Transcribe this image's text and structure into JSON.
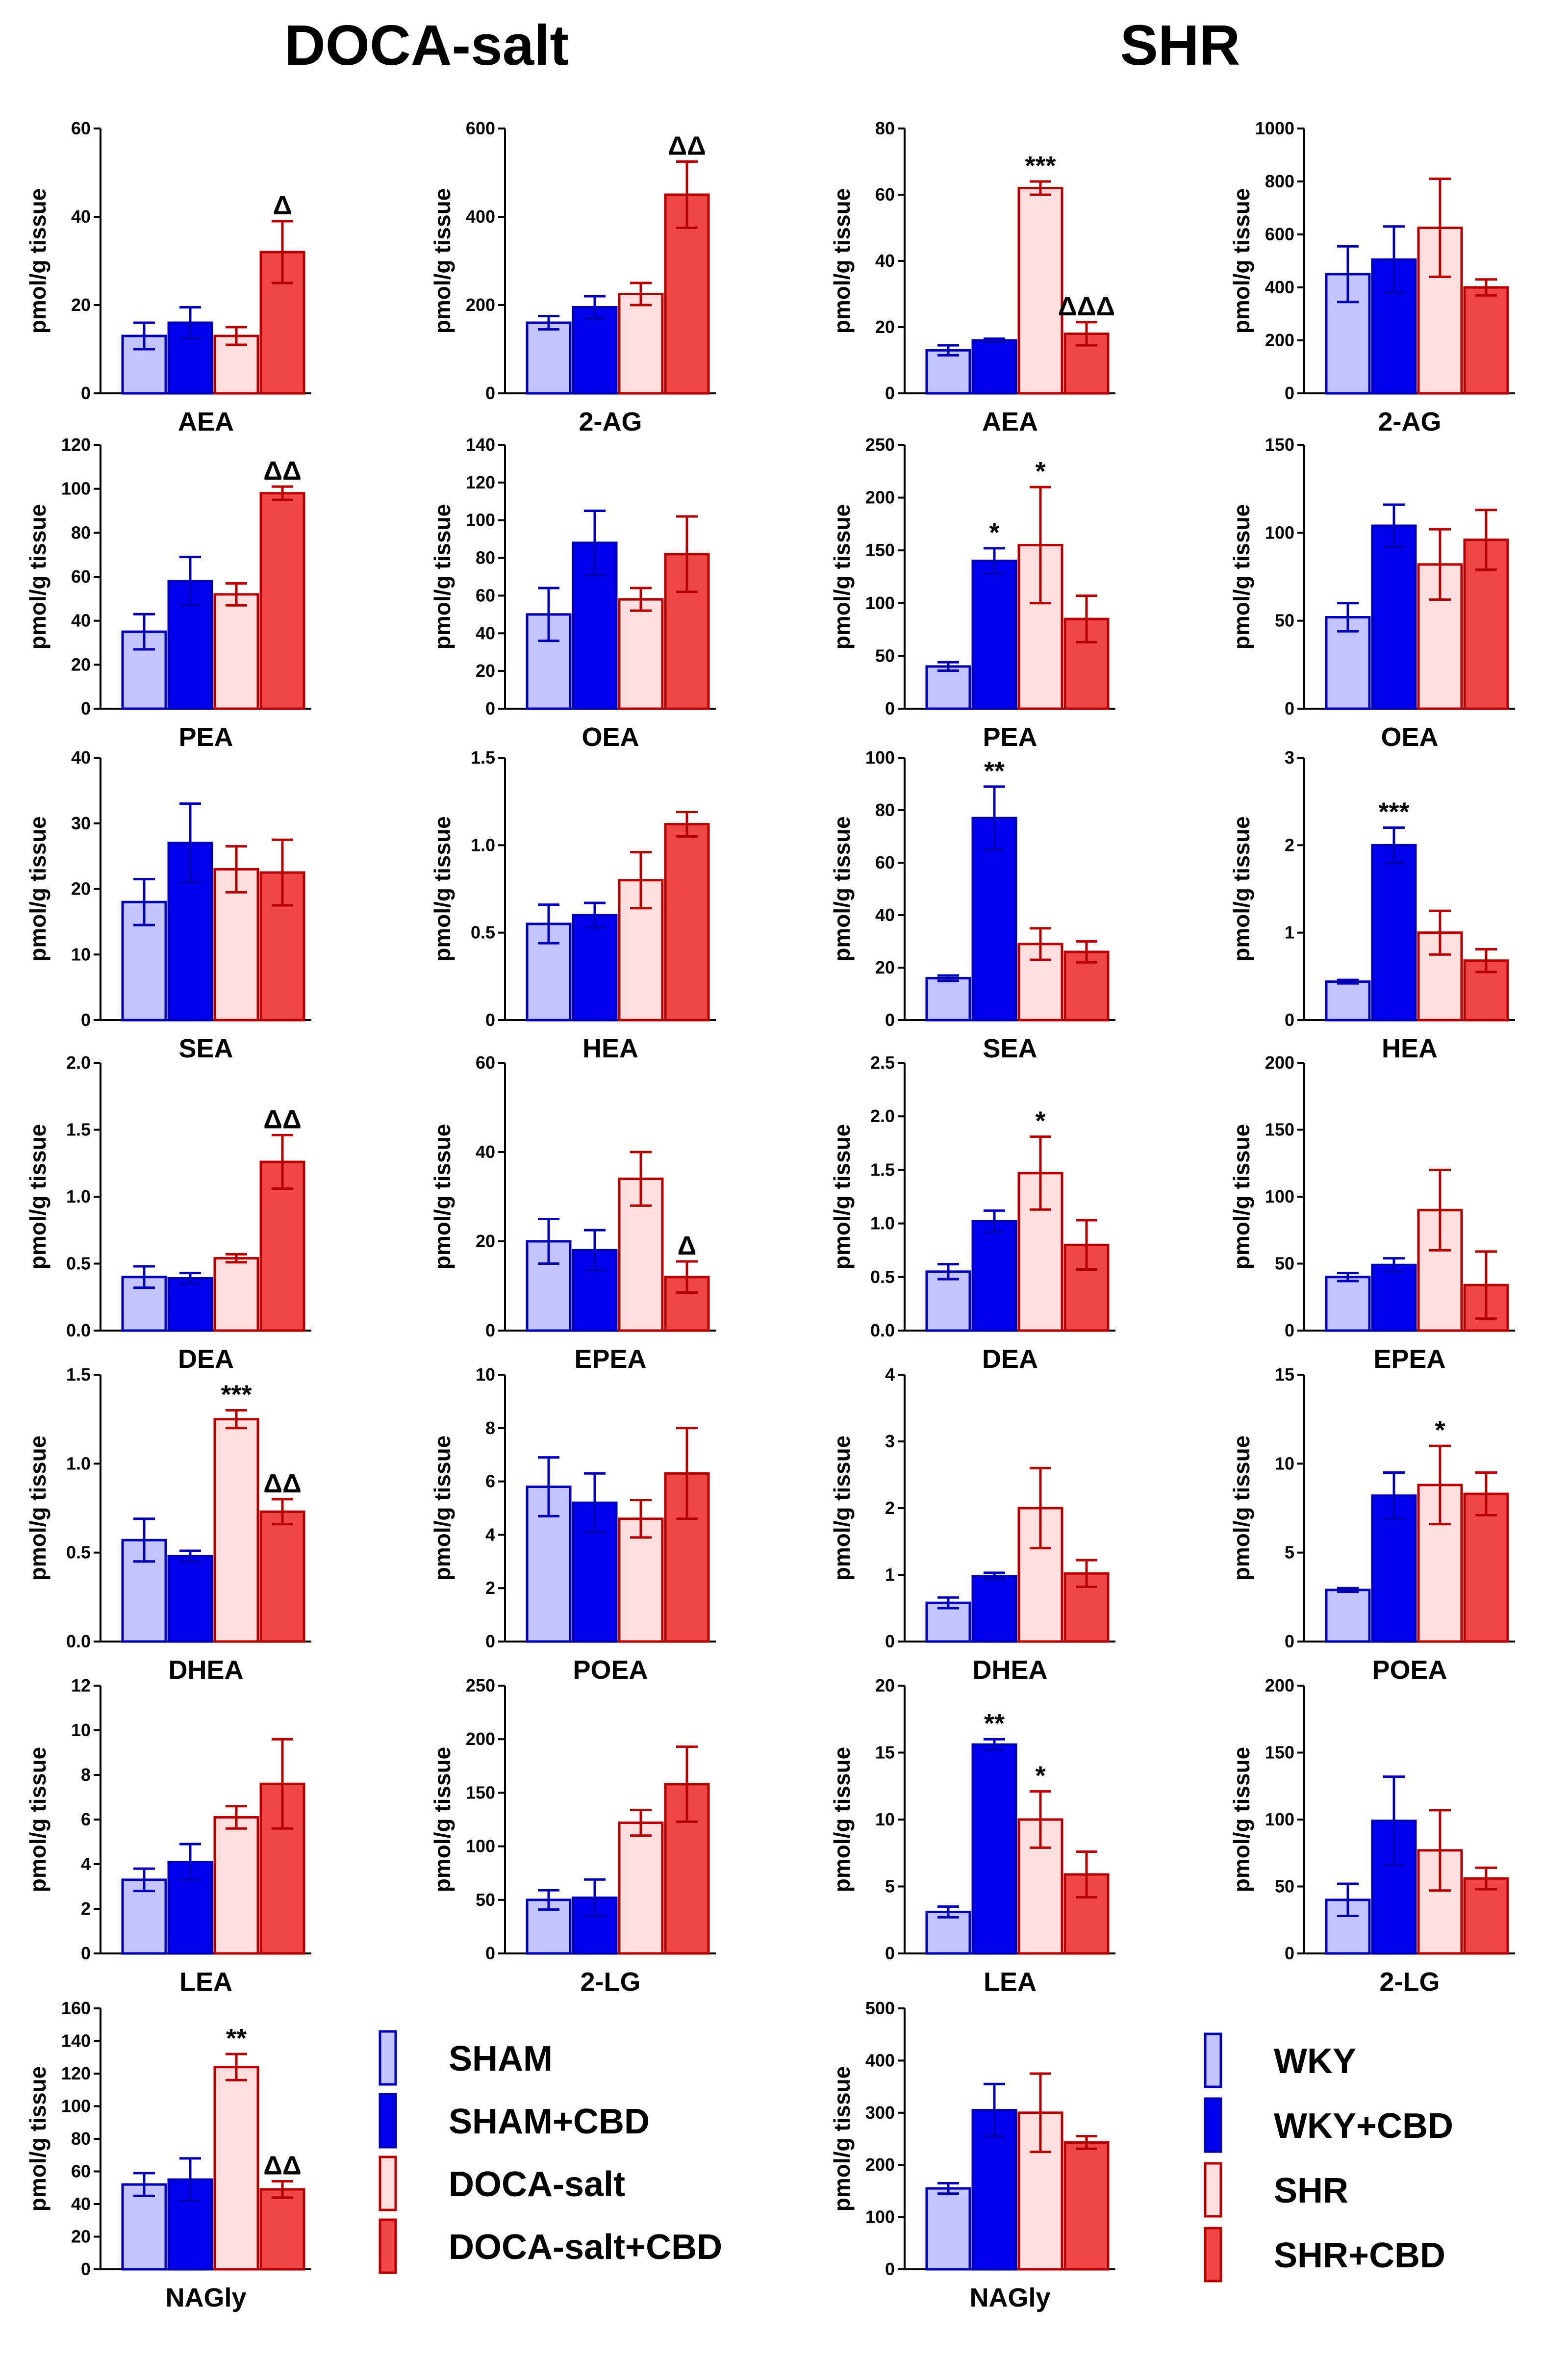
{
  "colors": {
    "light_blue_fill": "#c3c3ff",
    "dark_blue_fill": "#0000ee",
    "blue_stroke": "#0000b4",
    "light_red_fill": "#ffdede",
    "red_fill": "#f04646",
    "red_stroke": "#b40000"
  },
  "group_titles": {
    "left": "DOCA-salt",
    "right": "SHR"
  },
  "legends": {
    "left": [
      "SHAM",
      "SHAM+CBD",
      "DOCA-salt",
      "DOCA-salt+CBD"
    ],
    "right": [
      "WKY",
      "WKY+CBD",
      "SHR",
      "SHR+CBD"
    ]
  },
  "chart_data": [
    {
      "type": "bar",
      "group": "DOCA-salt",
      "title": "AEA",
      "ylabel": "pmol/g tissue",
      "ylim": [
        0,
        60
      ],
      "yticks": [
        "0",
        "20",
        "40",
        "60"
      ],
      "values": [
        13,
        16,
        13,
        32
      ],
      "errors": [
        3,
        3.5,
        2,
        7
      ],
      "annotations": [
        {
          "bar": 3,
          "text": "Δ"
        }
      ]
    },
    {
      "type": "bar",
      "group": "DOCA-salt",
      "title": "2-AG",
      "ylabel": "pmol/g tissue",
      "ylim": [
        0,
        600
      ],
      "yticks": [
        "0",
        "200",
        "400",
        "600"
      ],
      "values": [
        160,
        195,
        225,
        450
      ],
      "errors": [
        15,
        25,
        25,
        75
      ],
      "annotations": [
        {
          "bar": 3,
          "text": "ΔΔ"
        }
      ]
    },
    {
      "type": "bar",
      "group": "SHR",
      "title": "AEA",
      "ylabel": "pmol/g tissue",
      "ylim": [
        0,
        80
      ],
      "yticks": [
        "0",
        "20",
        "40",
        "60",
        "80"
      ],
      "values": [
        13,
        16,
        62,
        18
      ],
      "errors": [
        1.5,
        0.5,
        2,
        3.5
      ],
      "annotations": [
        {
          "bar": 2,
          "text": "***"
        },
        {
          "bar": 3,
          "text": "ΔΔΔ"
        }
      ]
    },
    {
      "type": "bar",
      "group": "SHR",
      "title": "2-AG",
      "ylabel": "pmol/g tissue",
      "ylim": [
        0,
        1000
      ],
      "yticks": [
        "0",
        "200",
        "400",
        "600",
        "800",
        "1000"
      ],
      "values": [
        450,
        505,
        625,
        400
      ],
      "errors": [
        105,
        125,
        185,
        30
      ],
      "annotations": []
    },
    {
      "type": "bar",
      "group": "DOCA-salt",
      "title": "PEA",
      "ylabel": "pmol/g tissue",
      "ylim": [
        0,
        120
      ],
      "yticks": [
        "0",
        "20",
        "40",
        "60",
        "80",
        "100",
        "120"
      ],
      "values": [
        35,
        58,
        52,
        98
      ],
      "errors": [
        8,
        11,
        5,
        3
      ],
      "annotations": [
        {
          "bar": 3,
          "text": "ΔΔ"
        }
      ]
    },
    {
      "type": "bar",
      "group": "DOCA-salt",
      "title": "OEA",
      "ylabel": "pmol/g tissue",
      "ylim": [
        0,
        140
      ],
      "yticks": [
        "0",
        "20",
        "40",
        "60",
        "80",
        "100",
        "120",
        "140"
      ],
      "values": [
        50,
        88,
        58,
        82
      ],
      "errors": [
        14,
        17,
        6,
        20
      ],
      "annotations": []
    },
    {
      "type": "bar",
      "group": "SHR",
      "title": "PEA",
      "ylabel": "pmol/g tissue",
      "ylim": [
        0,
        250
      ],
      "yticks": [
        "0",
        "50",
        "100",
        "150",
        "200",
        "250"
      ],
      "values": [
        40,
        140,
        155,
        85
      ],
      "errors": [
        4,
        12,
        55,
        22
      ],
      "annotations": [
        {
          "bar": 1,
          "text": "*"
        },
        {
          "bar": 2,
          "text": "*"
        }
      ]
    },
    {
      "type": "bar",
      "group": "SHR",
      "title": "OEA",
      "ylabel": "pmol/g tissue",
      "ylim": [
        0,
        150
      ],
      "yticks": [
        "0",
        "50",
        "100",
        "150"
      ],
      "values": [
        52,
        104,
        82,
        96
      ],
      "errors": [
        8,
        12,
        20,
        17
      ],
      "annotations": []
    },
    {
      "type": "bar",
      "group": "DOCA-salt",
      "title": "SEA",
      "ylabel": "pmol/g tissue",
      "ylim": [
        0,
        40
      ],
      "yticks": [
        "0",
        "10",
        "20",
        "30",
        "40"
      ],
      "values": [
        18,
        27,
        23,
        22.5
      ],
      "errors": [
        3.5,
        6,
        3.5,
        5
      ],
      "annotations": []
    },
    {
      "type": "bar",
      "group": "DOCA-salt",
      "title": "HEA",
      "ylabel": "pmol/g tissue",
      "ylim": [
        0,
        1.5
      ],
      "yticks": [
        "0",
        "0.5",
        "1.0",
        "1.5"
      ],
      "values": [
        0.55,
        0.6,
        0.8,
        1.12
      ],
      "errors": [
        0.11,
        0.07,
        0.16,
        0.07
      ],
      "annotations": []
    },
    {
      "type": "bar",
      "group": "SHR",
      "title": "SEA",
      "ylabel": "pmol/g tissue",
      "ylim": [
        0,
        100
      ],
      "yticks": [
        "0",
        "20",
        "40",
        "60",
        "80",
        "100"
      ],
      "values": [
        16,
        77,
        29,
        26
      ],
      "errors": [
        1,
        12,
        6,
        4
      ],
      "annotations": [
        {
          "bar": 1,
          "text": "**"
        }
      ]
    },
    {
      "type": "bar",
      "group": "SHR",
      "title": "HEA",
      "ylabel": "pmol/g tissue",
      "ylim": [
        0,
        3
      ],
      "yticks": [
        "0",
        "1",
        "2",
        "3"
      ],
      "values": [
        0.44,
        2.0,
        1.0,
        0.68
      ],
      "errors": [
        0.02,
        0.2,
        0.25,
        0.13
      ],
      "annotations": [
        {
          "bar": 1,
          "text": "***"
        }
      ]
    },
    {
      "type": "bar",
      "group": "DOCA-salt",
      "title": "DEA",
      "ylabel": "pmol/g tissue",
      "ylim": [
        0,
        2.0
      ],
      "yticks": [
        "0.0",
        "0.5",
        "1.0",
        "1.5",
        "2.0"
      ],
      "values": [
        0.4,
        0.39,
        0.54,
        1.26
      ],
      "errors": [
        0.08,
        0.04,
        0.03,
        0.2
      ],
      "annotations": [
        {
          "bar": 3,
          "text": "ΔΔ"
        }
      ]
    },
    {
      "type": "bar",
      "group": "DOCA-salt",
      "title": "EPEA",
      "ylabel": "pmol/g tissue",
      "ylim": [
        0,
        60
      ],
      "yticks": [
        "0",
        "20",
        "40",
        "60"
      ],
      "values": [
        20,
        18,
        34,
        12
      ],
      "errors": [
        5,
        4.5,
        6,
        3.5
      ],
      "annotations": [
        {
          "bar": 3,
          "text": "Δ"
        }
      ]
    },
    {
      "type": "bar",
      "group": "SHR",
      "title": "DEA",
      "ylabel": "pmol/g tissue",
      "ylim": [
        0,
        2.5
      ],
      "yticks": [
        "0.0",
        "0.5",
        "1.0",
        "1.5",
        "2.0",
        "2.5"
      ],
      "values": [
        0.55,
        1.02,
        1.47,
        0.8
      ],
      "errors": [
        0.07,
        0.1,
        0.34,
        0.23
      ],
      "annotations": [
        {
          "bar": 2,
          "text": "*"
        }
      ]
    },
    {
      "type": "bar",
      "group": "SHR",
      "title": "EPEA",
      "ylabel": "pmol/g tissue",
      "ylim": [
        0,
        200
      ],
      "yticks": [
        "0",
        "50",
        "100",
        "150",
        "200"
      ],
      "values": [
        40,
        49,
        90,
        34
      ],
      "errors": [
        3,
        5,
        30,
        25
      ],
      "annotations": []
    },
    {
      "type": "bar",
      "group": "DOCA-salt",
      "title": "DHEA",
      "ylabel": "pmol/g tissue",
      "ylim": [
        0,
        1.5
      ],
      "yticks": [
        "0.0",
        "0.5",
        "1.0",
        "1.5"
      ],
      "values": [
        0.57,
        0.48,
        1.25,
        0.73
      ],
      "errors": [
        0.12,
        0.03,
        0.05,
        0.07
      ],
      "annotations": [
        {
          "bar": 2,
          "text": "***"
        },
        {
          "bar": 3,
          "text": "ΔΔ"
        }
      ]
    },
    {
      "type": "bar",
      "group": "DOCA-salt",
      "title": "POEA",
      "ylabel": "pmol/g tissue",
      "ylim": [
        0,
        10
      ],
      "yticks": [
        "0",
        "2",
        "4",
        "6",
        "8",
        "10"
      ],
      "values": [
        5.8,
        5.2,
        4.6,
        6.3
      ],
      "errors": [
        1.1,
        1.1,
        0.7,
        1.7
      ],
      "annotations": []
    },
    {
      "type": "bar",
      "group": "SHR",
      "title": "DHEA",
      "ylabel": "pmol/g tissue",
      "ylim": [
        0,
        4
      ],
      "yticks": [
        "0",
        "1",
        "2",
        "3",
        "4"
      ],
      "values": [
        0.58,
        0.98,
        2.0,
        1.02
      ],
      "errors": [
        0.08,
        0.05,
        0.6,
        0.2
      ],
      "annotations": []
    },
    {
      "type": "bar",
      "group": "SHR",
      "title": "POEA",
      "ylabel": "pmol/g tissue",
      "ylim": [
        0,
        15
      ],
      "yticks": [
        "0",
        "5",
        "10",
        "15"
      ],
      "values": [
        2.9,
        8.2,
        8.8,
        8.3
      ],
      "errors": [
        0.1,
        1.3,
        2.2,
        1.2
      ],
      "annotations": [
        {
          "bar": 2,
          "text": "*"
        }
      ]
    },
    {
      "type": "bar",
      "group": "DOCA-salt",
      "title": "LEA",
      "ylabel": "pmol/g tissue",
      "ylim": [
        0,
        12
      ],
      "yticks": [
        "0",
        "2",
        "4",
        "6",
        "8",
        "10",
        "12"
      ],
      "values": [
        3.3,
        4.1,
        6.1,
        7.6
      ],
      "errors": [
        0.5,
        0.8,
        0.5,
        2.0
      ],
      "annotations": []
    },
    {
      "type": "bar",
      "group": "DOCA-salt",
      "title": "2-LG",
      "ylabel": "pmol/g tissue",
      "ylim": [
        0,
        250
      ],
      "yticks": [
        "0",
        "50",
        "100",
        "150",
        "200",
        "250"
      ],
      "values": [
        50,
        52,
        122,
        158
      ],
      "errors": [
        9,
        17,
        12,
        35
      ],
      "annotations": []
    },
    {
      "type": "bar",
      "group": "SHR",
      "title": "LEA",
      "ylabel": "pmol/g tissue",
      "ylim": [
        0,
        20
      ],
      "yticks": [
        "0",
        "5",
        "10",
        "15",
        "20"
      ],
      "values": [
        3.1,
        15.6,
        10.0,
        5.9
      ],
      "errors": [
        0.4,
        0.4,
        2.1,
        1.7
      ],
      "annotations": [
        {
          "bar": 1,
          "text": "**"
        },
        {
          "bar": 2,
          "text": "*"
        }
      ]
    },
    {
      "type": "bar",
      "group": "SHR",
      "title": "2-LG",
      "ylabel": "pmol/g tissue",
      "ylim": [
        0,
        200
      ],
      "yticks": [
        "0",
        "50",
        "100",
        "150",
        "200"
      ],
      "values": [
        40,
        99,
        77,
        56
      ],
      "errors": [
        12,
        33,
        30,
        8
      ],
      "annotations": []
    },
    {
      "type": "bar",
      "group": "DOCA-salt",
      "title": "NAGly",
      "ylabel": "pmol/g tissue",
      "ylim": [
        0,
        160
      ],
      "yticks": [
        "0",
        "20",
        "40",
        "60",
        "80",
        "100",
        "120",
        "140",
        "160"
      ],
      "values": [
        52,
        55,
        124,
        49
      ],
      "errors": [
        7,
        13,
        8,
        5
      ],
      "annotations": [
        {
          "bar": 2,
          "text": "**"
        },
        {
          "bar": 3,
          "text": "ΔΔ"
        }
      ]
    },
    {
      "type": "bar",
      "group": "SHR",
      "title": "NAGly",
      "ylabel": "pmol/g tissue",
      "ylim": [
        0,
        500
      ],
      "yticks": [
        "0",
        "100",
        "200",
        "300",
        "400",
        "500"
      ],
      "values": [
        155,
        305,
        300,
        243
      ],
      "errors": [
        10,
        50,
        75,
        12
      ],
      "annotations": []
    }
  ]
}
